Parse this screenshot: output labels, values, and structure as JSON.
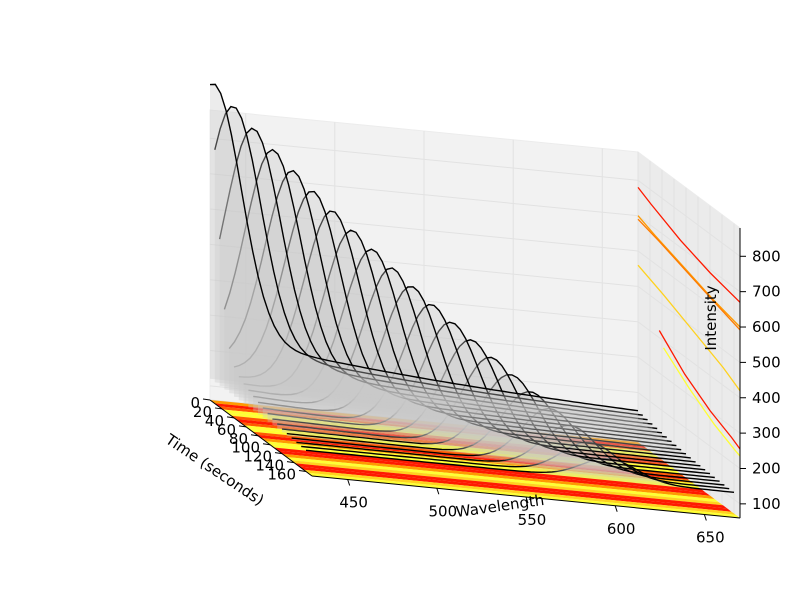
{
  "chart_data": {
    "type": "3d-waterfall",
    "title": "",
    "xlabel": "Wavelength",
    "ylabel": "Time (seconds)",
    "zlabel": "Intensity",
    "x_ticks": [
      450,
      500,
      550,
      600,
      650
    ],
    "y_ticks": [
      0,
      20,
      40,
      60,
      80,
      100,
      120,
      140,
      160
    ],
    "y_tick_labels": [
      "0",
      "20",
      "40",
      "60",
      "80",
      "100",
      "120",
      "140",
      "160"
    ],
    "z_ticks": [
      100,
      200,
      300,
      400,
      500,
      600,
      700,
      800
    ],
    "xlim": [
      430,
      670
    ],
    "ylim": [
      0,
      170
    ],
    "zlim": [
      60,
      880
    ],
    "grid": true,
    "colormap": [
      "#ffff33",
      "#ffd21e",
      "#ff9a00",
      "#ff5a00",
      "#ff1a00"
    ],
    "surface_series": {
      "description_free": true,
      "times": [
        0,
        8,
        16,
        24,
        32,
        40,
        48,
        56,
        64,
        72,
        80,
        88,
        96,
        104,
        112,
        120,
        128,
        136,
        144,
        152,
        160
      ],
      "peak_wavelength_start": 432,
      "peak_wavelength_end": 600,
      "peak_intensity_start": 830,
      "peak_intensity_end": 180,
      "baseline_intensity": 120
    },
    "wall_profiles": [
      {
        "color": "#ff1a00",
        "values": [
          [
            430,
            780
          ],
          [
            460,
            760
          ],
          [
            530,
            720
          ],
          [
            600,
            690
          ],
          [
            670,
            670
          ]
        ]
      },
      {
        "color": "#ff9a00",
        "values": [
          [
            430,
            700
          ],
          [
            470,
            680
          ],
          [
            540,
            650
          ],
          [
            610,
            620
          ],
          [
            670,
            600
          ]
        ]
      },
      {
        "color": "#ff7a00",
        "values": [
          [
            430,
            690
          ],
          [
            480,
            672
          ],
          [
            550,
            642
          ],
          [
            620,
            612
          ],
          [
            670,
            592
          ]
        ]
      },
      {
        "color": "#ffd21e",
        "values": [
          [
            430,
            560
          ],
          [
            490,
            530
          ],
          [
            560,
            490
          ],
          [
            630,
            450
          ],
          [
            670,
            420
          ]
        ]
      },
      {
        "color": "#ff1a00",
        "values": [
          [
            480,
            420
          ],
          [
            540,
            350
          ],
          [
            600,
            300
          ],
          [
            650,
            270
          ],
          [
            670,
            255
          ]
        ]
      },
      {
        "color": "#ffff33",
        "values": [
          [
            490,
            380
          ],
          [
            550,
            320
          ],
          [
            610,
            270
          ],
          [
            660,
            240
          ],
          [
            670,
            235
          ]
        ]
      }
    ]
  }
}
